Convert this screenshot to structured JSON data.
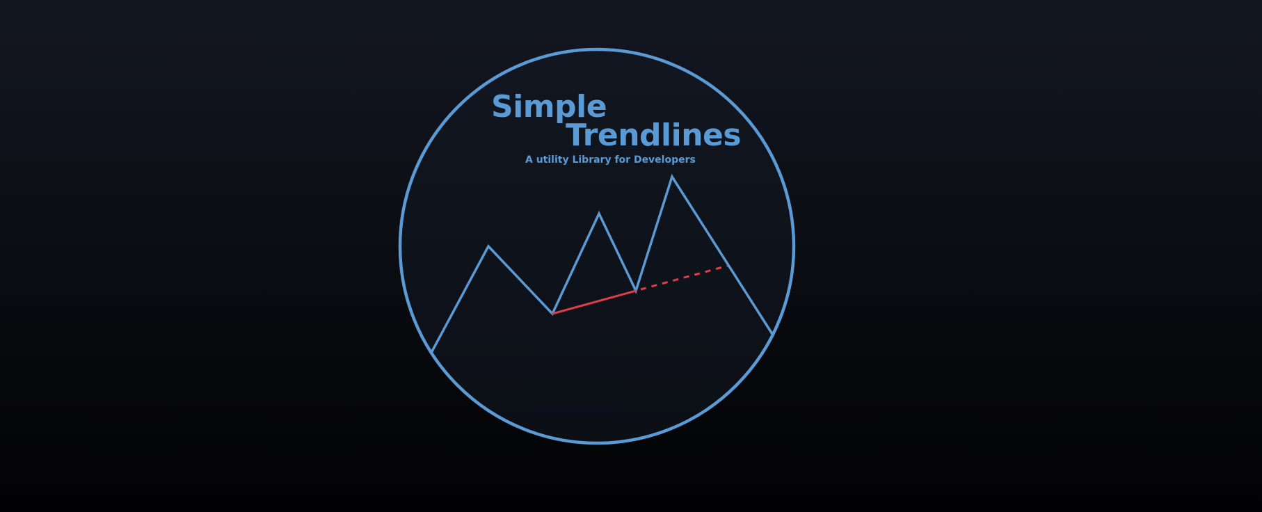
{
  "logo": {
    "title_line1": "Simple",
    "title_line2": "Trendlines",
    "subtitle": "A utility Library for Developers"
  },
  "colors": {
    "accent": "#5b9bd5",
    "trendline": "#e03c4a",
    "background_top": "#131722",
    "background_bottom": "#020203",
    "circle_fill": "#131722"
  },
  "icon": "zigzag-trendline-icon"
}
